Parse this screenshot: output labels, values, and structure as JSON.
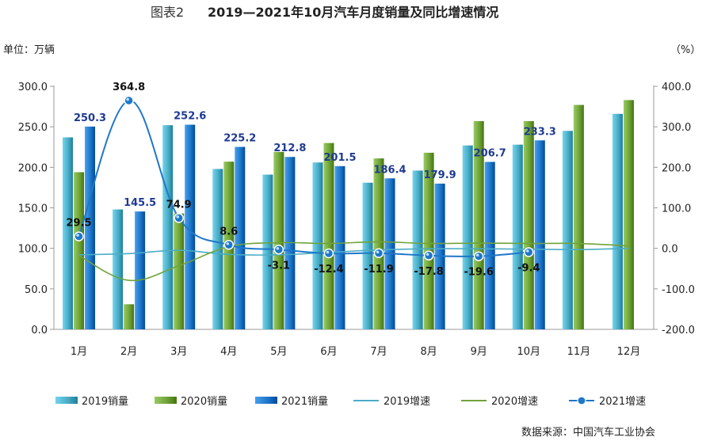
{
  "figure_label": "图表2",
  "title": "2019—2021年10月汽车月度销量及同比增速情况",
  "unit_left": "单位：万辆",
  "unit_right": "（%）",
  "source": "数据来源：中国汽车工业协会",
  "chart_data": {
    "type": "bar",
    "categories": [
      "1月",
      "2月",
      "3月",
      "4月",
      "5月",
      "6月",
      "7月",
      "8月",
      "9月",
      "10月",
      "11月",
      "12月"
    ],
    "left_axis": {
      "min": 0,
      "max": 300,
      "step": 50,
      "ticks": [
        "0.0",
        "50.0",
        "100.0",
        "150.0",
        "200.0",
        "250.0",
        "300.0"
      ]
    },
    "right_axis": {
      "min": -200,
      "max": 400,
      "step": 100,
      "ticks": [
        "-200.0",
        "-100.0",
        "0.0",
        "100.0",
        "200.0",
        "300.0",
        "400.0"
      ]
    },
    "bar_series": [
      {
        "name": "2019销量",
        "color": "#4bacc6",
        "values": [
          237.0,
          148.0,
          252.0,
          198.0,
          191.0,
          206.0,
          181.0,
          196.0,
          227.0,
          228.0,
          245.0,
          266.0
        ]
      },
      {
        "name": "2020销量",
        "color": "#70a33a",
        "values": [
          194.0,
          31.0,
          143.0,
          207.0,
          219.0,
          230.0,
          211.0,
          218.0,
          257.0,
          257.0,
          277.0,
          283.0
        ]
      },
      {
        "name": "2021销量",
        "color": "#1f77c8",
        "values": [
          250.3,
          145.5,
          252.6,
          225.2,
          212.8,
          201.5,
          186.4,
          179.9,
          206.7,
          233.3,
          null,
          null
        ],
        "labels": [
          "250.3",
          "145.5",
          "252.6",
          "225.2",
          "212.8",
          "201.5",
          "186.4",
          "179.9",
          "206.7",
          "233.3",
          "",
          ""
        ]
      }
    ],
    "line_series": [
      {
        "name": "2019增速",
        "color": "#4bacc6",
        "values": [
          -16.0,
          -13.0,
          -5.0,
          -15.0,
          -16.0,
          -10.0,
          -4.0,
          -1.0,
          -1.0,
          -2.0,
          -3.0,
          0.0
        ]
      },
      {
        "name": "2020增速",
        "color": "#70a33a",
        "values": [
          -18.0,
          -79.0,
          -43.0,
          4.0,
          14.0,
          12.0,
          16.0,
          12.0,
          13.0,
          12.0,
          12.0,
          6.0
        ]
      },
      {
        "name": "2021增速",
        "color": "#1f77c8",
        "values": [
          29.5,
          364.8,
          74.9,
          8.6,
          -3.1,
          -12.4,
          -11.9,
          -17.8,
          -19.6,
          -9.4,
          null,
          null
        ],
        "labels": [
          "29.5",
          "364.8",
          "74.9",
          "8.6",
          "-3.1",
          "-12.4",
          "-11.9",
          "-17.8",
          "-19.6",
          "-9.4",
          "",
          ""
        ]
      }
    ],
    "legend": [
      "2019销量",
      "2020销量",
      "2021销量",
      "2019增速",
      "2020增速",
      "2021增速"
    ],
    "legend_position": "bottom"
  }
}
